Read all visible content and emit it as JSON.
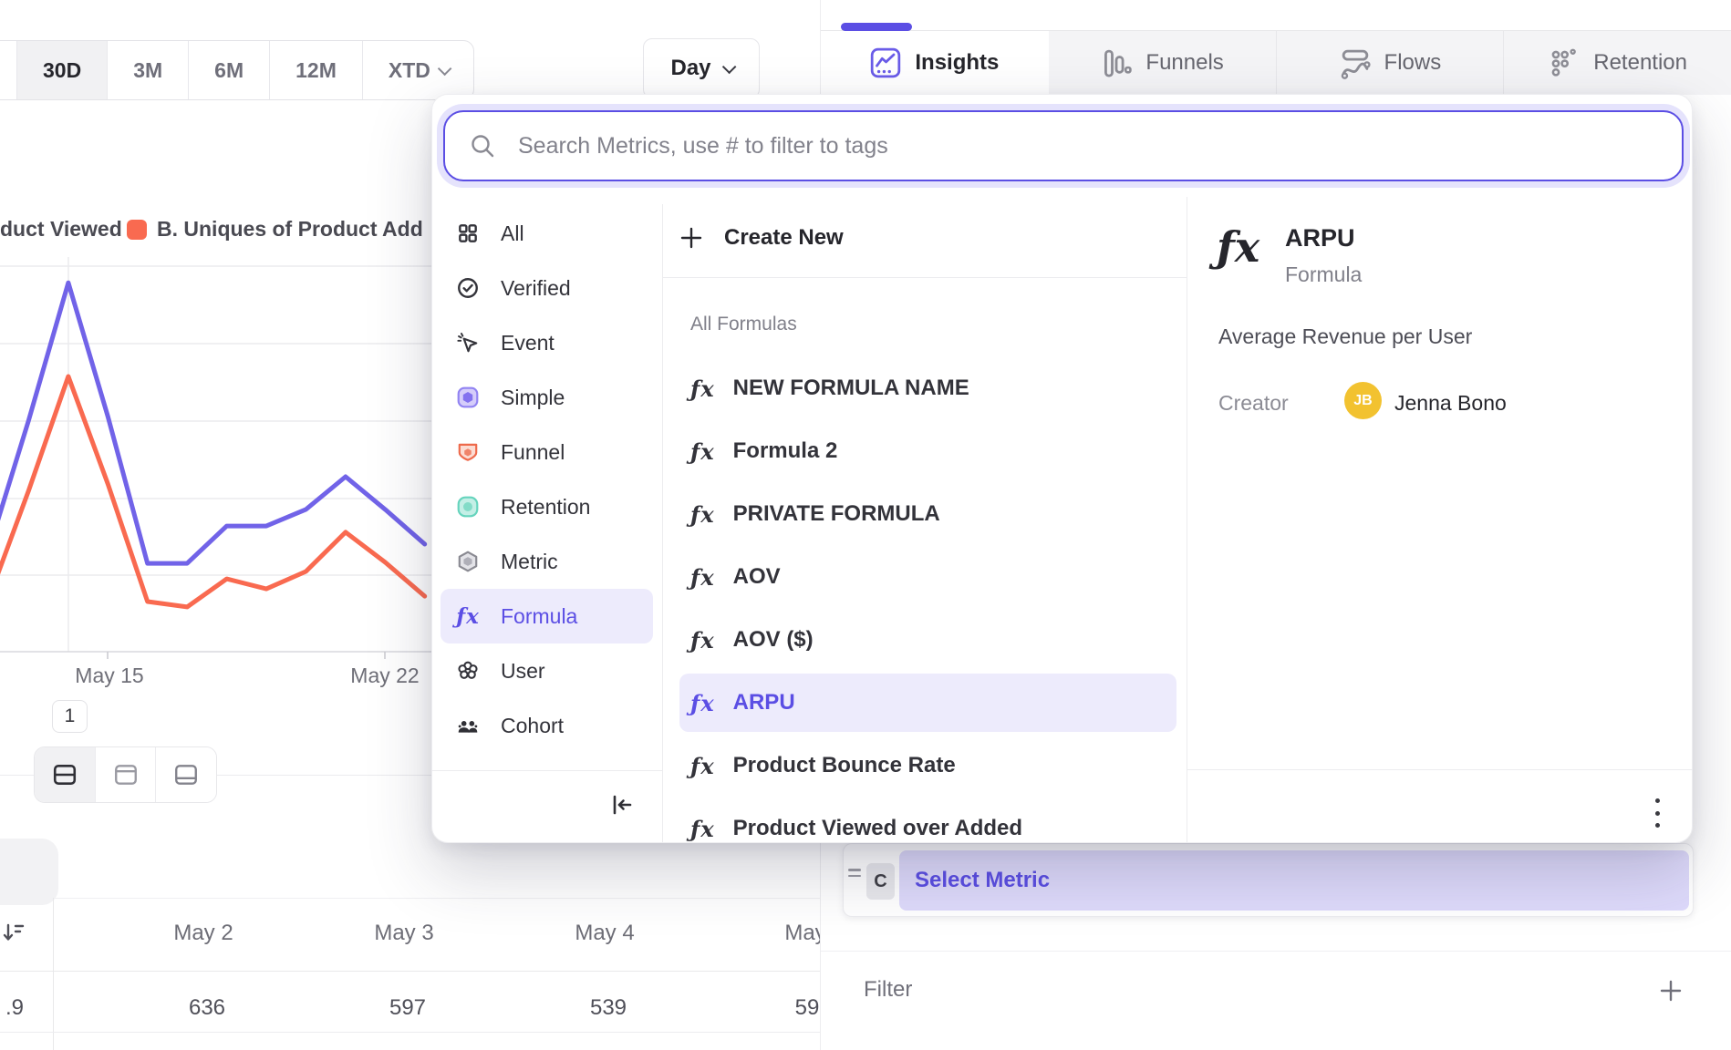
{
  "colors": {
    "accent": "#5b4ee4",
    "avatar_yellow": "#f2c230",
    "highlight_bg": "#edebfc",
    "lavender_field": "#dedafb"
  },
  "toolbar": {
    "ranges": [
      "30D",
      "3M",
      "6M",
      "12M",
      "XTD"
    ],
    "selected_range": "30D",
    "granularity_label": "Day"
  },
  "tabs": [
    {
      "label": "Insights",
      "active": true
    },
    {
      "label": "Funnels",
      "active": false
    },
    {
      "label": "Flows",
      "active": false
    },
    {
      "label": "Retention",
      "active": false
    }
  ],
  "legend": [
    {
      "label": "duct Viewed"
    },
    {
      "label": "B. Uniques of Product Add",
      "swatch": "#f96a50"
    }
  ],
  "chart_data": {
    "type": "line",
    "x": [
      "May 12",
      "May 13",
      "May 14",
      "May 15",
      "May 16",
      "May 17",
      "May 18",
      "May 19",
      "May 20",
      "May 21",
      "May 22",
      "May 23"
    ],
    "x_tick_labels": [
      "May 15",
      "May 22"
    ],
    "series": [
      {
        "name": "duct Viewed",
        "color": "#7163e8",
        "relative_values": [
          26.7,
          60.0,
          95.7,
          61.0,
          22.9,
          22.9,
          32.6,
          32.6,
          36.9,
          45.4,
          36.9,
          27.9
        ]
      },
      {
        "name": "B. Uniques of Product Add",
        "color": "#f96a50",
        "relative_values": [
          14.0,
          41.8,
          71.4,
          43.5,
          13.0,
          11.6,
          18.9,
          16.3,
          20.8,
          31.0,
          23.2,
          14.4
        ]
      }
    ],
    "ylim": [
      0,
      100
    ],
    "grid": true,
    "legend_position": "top-left",
    "note_units": "relative height, y-axis labels not visible in screenshot"
  },
  "pagination": {
    "page": "1"
  },
  "bottom_table": {
    "sort_icon": "sort-descending-icon",
    "headers": [
      "May 2",
      "May 3",
      "May 4",
      "May"
    ],
    "frozen_value": ".9",
    "values": [
      "636",
      "597",
      "539",
      "59"
    ]
  },
  "metric_picker": {
    "search_placeholder": "Search Metrics, use # to filter to tags",
    "categories": [
      "All",
      "Verified",
      "Event",
      "Simple",
      "Funnel",
      "Retention",
      "Metric",
      "Formula",
      "User",
      "Cohort"
    ],
    "selected_category": "Formula",
    "create_new_label": "Create New",
    "section_label": "All Formulas",
    "formulas": [
      "NEW FORMULA NAME",
      "Formula 2",
      "PRIVATE FORMULA",
      "AOV",
      "AOV ($)",
      "ARPU",
      "Product Bounce Rate",
      "Product Viewed over Added"
    ],
    "selected_formula": "ARPU",
    "details": {
      "title": "ARPU",
      "type": "Formula",
      "description": "Average Revenue per User",
      "creator_label": "Creator",
      "avatar_initials": "JB",
      "creator_name": "Jenna Bono"
    }
  },
  "query_builder": {
    "clause_letter": "C",
    "select_metric_label": "Select Metric",
    "filter_label": "Filter"
  }
}
